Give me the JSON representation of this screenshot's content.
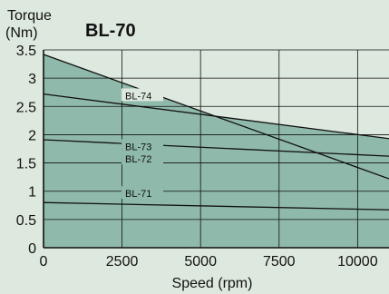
{
  "colors": {
    "background": "#dde8de",
    "fill": "#8fb9aa",
    "line": "#111111",
    "grid": "#111111"
  },
  "chart_data": {
    "type": "line",
    "title": "BL-70",
    "ylabel_line1": "Torque",
    "ylabel_line2": "(Nm)",
    "xlabel": "Speed (rpm)",
    "xlim": [
      0,
      11000
    ],
    "ylim": [
      0,
      3.5
    ],
    "x_ticks": [
      0,
      2500,
      5000,
      7500,
      10000
    ],
    "x_tick_labels": [
      "0",
      "2500",
      "5000",
      "7500",
      "10000"
    ],
    "y_ticks": [
      0,
      0.5,
      1,
      1.5,
      2,
      2.5,
      3,
      3.5
    ],
    "y_tick_labels": [
      "0",
      "0.5",
      "1",
      "1.5",
      "2",
      "2.5",
      "3",
      "3.5"
    ],
    "grid": true,
    "shaded_envelope": true,
    "series": [
      {
        "name": "BL-74",
        "x": [
          0,
          11000
        ],
        "y": [
          3.42,
          1.22
        ],
        "label_x": 2600
      },
      {
        "name": "BL-73",
        "x": [
          0,
          11000
        ],
        "y": [
          2.72,
          1.93
        ],
        "label_x": 2600
      },
      {
        "name": "BL-72",
        "x": [
          0,
          11000
        ],
        "y": [
          1.91,
          1.62
        ],
        "label_x": 2600
      },
      {
        "name": "BL-71",
        "x": [
          0,
          11000
        ],
        "y": [
          0.8,
          0.67
        ],
        "label_x": 2600
      }
    ]
  }
}
